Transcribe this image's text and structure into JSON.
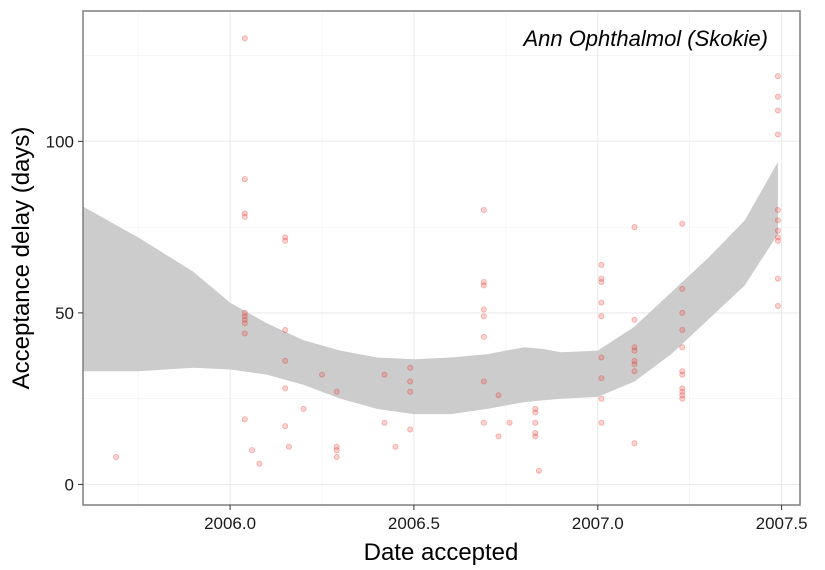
{
  "chart_data": {
    "type": "scatter",
    "title": "",
    "annotation": "Ann Ophthalmol (Skokie)",
    "xlabel": "Date accepted",
    "ylabel": "Acceptance delay (days)",
    "xlim": [
      2005.6,
      2007.55
    ],
    "ylim": [
      -6,
      138
    ],
    "xticks": [
      2006.0,
      2006.5,
      2007.0,
      2007.5
    ],
    "xtick_labels": [
      "2006.0",
      "2006.5",
      "2007.0",
      "2007.5"
    ],
    "yticks": [
      0,
      50,
      100
    ],
    "ytick_labels": [
      "0",
      "50",
      "100"
    ],
    "grid": true,
    "point_color": "#e8302a",
    "band_color": "#cccccc",
    "frame_color": "#7f7f7f",
    "points": [
      [
        2005.69,
        8
      ],
      [
        2006.04,
        130
      ],
      [
        2006.04,
        89
      ],
      [
        2006.04,
        79
      ],
      [
        2006.04,
        78
      ],
      [
        2006.04,
        50
      ],
      [
        2006.04,
        49
      ],
      [
        2006.04,
        48
      ],
      [
        2006.04,
        47
      ],
      [
        2006.04,
        44
      ],
      [
        2006.04,
        19
      ],
      [
        2006.06,
        10
      ],
      [
        2006.08,
        6
      ],
      [
        2006.15,
        72
      ],
      [
        2006.15,
        71
      ],
      [
        2006.15,
        45
      ],
      [
        2006.15,
        36
      ],
      [
        2006.15,
        28
      ],
      [
        2006.15,
        17
      ],
      [
        2006.16,
        11
      ],
      [
        2006.2,
        22
      ],
      [
        2006.25,
        32
      ],
      [
        2006.29,
        27
      ],
      [
        2006.29,
        11
      ],
      [
        2006.29,
        10
      ],
      [
        2006.29,
        8
      ],
      [
        2006.42,
        32
      ],
      [
        2006.42,
        18
      ],
      [
        2006.45,
        11
      ],
      [
        2006.49,
        34
      ],
      [
        2006.49,
        30
      ],
      [
        2006.49,
        27
      ],
      [
        2006.49,
        16
      ],
      [
        2006.69,
        80
      ],
      [
        2006.69,
        59
      ],
      [
        2006.69,
        58
      ],
      [
        2006.69,
        51
      ],
      [
        2006.69,
        49
      ],
      [
        2006.69,
        43
      ],
      [
        2006.69,
        30
      ],
      [
        2006.69,
        18
      ],
      [
        2006.73,
        26
      ],
      [
        2006.73,
        14
      ],
      [
        2006.76,
        18
      ],
      [
        2006.83,
        22
      ],
      [
        2006.83,
        21
      ],
      [
        2006.83,
        18
      ],
      [
        2006.83,
        15
      ],
      [
        2006.83,
        14
      ],
      [
        2006.84,
        4
      ],
      [
        2007.01,
        64
      ],
      [
        2007.01,
        60
      ],
      [
        2007.01,
        59
      ],
      [
        2007.01,
        53
      ],
      [
        2007.01,
        49
      ],
      [
        2007.01,
        37
      ],
      [
        2007.01,
        31
      ],
      [
        2007.01,
        25
      ],
      [
        2007.01,
        18
      ],
      [
        2007.1,
        75
      ],
      [
        2007.1,
        48
      ],
      [
        2007.1,
        40
      ],
      [
        2007.1,
        39
      ],
      [
        2007.1,
        36
      ],
      [
        2007.1,
        35
      ],
      [
        2007.1,
        33
      ],
      [
        2007.1,
        12
      ],
      [
        2007.23,
        76
      ],
      [
        2007.23,
        57
      ],
      [
        2007.23,
        50
      ],
      [
        2007.23,
        45
      ],
      [
        2007.23,
        40
      ],
      [
        2007.23,
        33
      ],
      [
        2007.23,
        32
      ],
      [
        2007.23,
        28
      ],
      [
        2007.23,
        27
      ],
      [
        2007.23,
        26
      ],
      [
        2007.23,
        25
      ],
      [
        2007.49,
        119
      ],
      [
        2007.49,
        113
      ],
      [
        2007.49,
        109
      ],
      [
        2007.49,
        102
      ],
      [
        2007.49,
        80
      ],
      [
        2007.49,
        77
      ],
      [
        2007.49,
        74
      ],
      [
        2007.49,
        72
      ],
      [
        2007.49,
        71
      ],
      [
        2007.49,
        60
      ],
      [
        2007.49,
        52
      ]
    ],
    "confidence_band": [
      {
        "x": 2005.6,
        "low": 33,
        "high": 81
      },
      {
        "x": 2005.75,
        "low": 33,
        "high": 72
      },
      {
        "x": 2005.9,
        "low": 34,
        "high": 62
      },
      {
        "x": 2006.0,
        "low": 33.5,
        "high": 53
      },
      {
        "x": 2006.1,
        "low": 32,
        "high": 47
      },
      {
        "x": 2006.2,
        "low": 29,
        "high": 42
      },
      {
        "x": 2006.3,
        "low": 25,
        "high": 39
      },
      {
        "x": 2006.4,
        "low": 22,
        "high": 37
      },
      {
        "x": 2006.5,
        "low": 20.5,
        "high": 36.5
      },
      {
        "x": 2006.6,
        "low": 20.5,
        "high": 37
      },
      {
        "x": 2006.7,
        "low": 22,
        "high": 38
      },
      {
        "x": 2006.8,
        "low": 24,
        "high": 40
      },
      {
        "x": 2006.85,
        "low": 24.5,
        "high": 39.5
      },
      {
        "x": 2006.9,
        "low": 25,
        "high": 38.5
      },
      {
        "x": 2007.0,
        "low": 25.5,
        "high": 39
      },
      {
        "x": 2007.1,
        "low": 30,
        "high": 46
      },
      {
        "x": 2007.2,
        "low": 38,
        "high": 56
      },
      {
        "x": 2007.3,
        "low": 48,
        "high": 66
      },
      {
        "x": 2007.4,
        "low": 58,
        "high": 77
      },
      {
        "x": 2007.49,
        "low": 73,
        "high": 94
      }
    ]
  }
}
